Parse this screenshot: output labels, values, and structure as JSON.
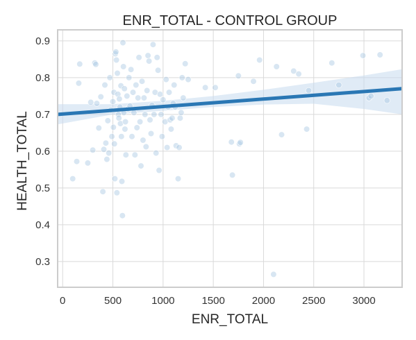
{
  "chart_data": {
    "type": "scatter",
    "title": "ENR_TOTAL - CONTROL GROUP",
    "xlabel": "ENR_TOTAL",
    "ylabel": "HEALTH_TOTAL",
    "xlim": [
      -50,
      3380
    ],
    "ylim": [
      0.23,
      0.93
    ],
    "xticks": [
      "0",
      "500",
      "1000",
      "1500",
      "2000",
      "2500",
      "3000"
    ],
    "yticks": [
      "0.3",
      "0.4",
      "0.5",
      "0.6",
      "0.7",
      "0.8",
      "0.9"
    ],
    "grid": true,
    "colors": {
      "point": "#a9c8e3",
      "line": "#2a77b4",
      "band": "#c6dbef",
      "frame": "#cccccc",
      "grid": "#d9d9d9"
    },
    "regression": {
      "x": [
        -50,
        3380
      ],
      "y": [
        0.7,
        0.77
      ]
    },
    "confidence_band": {
      "x": [
        -50,
        500,
        1000,
        1500,
        2000,
        2500,
        3000,
        3380
      ],
      "upper": [
        0.728,
        0.728,
        0.737,
        0.75,
        0.767,
        0.786,
        0.806,
        0.823
      ],
      "lower": [
        0.673,
        0.7,
        0.71,
        0.72,
        0.727,
        0.729,
        0.715,
        0.7
      ]
    },
    "points": [
      [
        100,
        0.525
      ],
      [
        140,
        0.572
      ],
      [
        160,
        0.785
      ],
      [
        170,
        0.837
      ],
      [
        250,
        0.568
      ],
      [
        280,
        0.733
      ],
      [
        300,
        0.603
      ],
      [
        320,
        0.84
      ],
      [
        330,
        0.836
      ],
      [
        340,
        0.73
      ],
      [
        360,
        0.663
      ],
      [
        380,
        0.748
      ],
      [
        400,
        0.49
      ],
      [
        410,
        0.605
      ],
      [
        420,
        0.78
      ],
      [
        430,
        0.622
      ],
      [
        440,
        0.578
      ],
      [
        450,
        0.683
      ],
      [
        460,
        0.595
      ],
      [
        470,
        0.8
      ],
      [
        480,
        0.712
      ],
      [
        490,
        0.64
      ],
      [
        500,
        0.735
      ],
      [
        505,
        0.665
      ],
      [
        510,
        0.76
      ],
      [
        515,
        0.62
      ],
      [
        520,
        0.525
      ],
      [
        525,
        0.865
      ],
      [
        530,
        0.87
      ],
      [
        535,
        0.848
      ],
      [
        540,
        0.487
      ],
      [
        545,
        0.812
      ],
      [
        550,
        0.755
      ],
      [
        555,
        0.7
      ],
      [
        560,
        0.69
      ],
      [
        565,
        0.742
      ],
      [
        570,
        0.72
      ],
      [
        575,
        0.675
      ],
      [
        580,
        0.778
      ],
      [
        585,
        0.64
      ],
      [
        590,
        0.518
      ],
      [
        595,
        0.425
      ],
      [
        600,
        0.895
      ],
      [
        605,
        0.83
      ],
      [
        610,
        0.705
      ],
      [
        615,
        0.77
      ],
      [
        620,
        0.66
      ],
      [
        625,
        0.68
      ],
      [
        630,
        0.59
      ],
      [
        640,
        0.75
      ],
      [
        650,
        0.715
      ],
      [
        660,
        0.8
      ],
      [
        670,
        0.723
      ],
      [
        680,
        0.822
      ],
      [
        690,
        0.64
      ],
      [
        700,
        0.76
      ],
      [
        710,
        0.705
      ],
      [
        720,
        0.59
      ],
      [
        730,
        0.78
      ],
      [
        740,
        0.664
      ],
      [
        750,
        0.745
      ],
      [
        760,
        0.855
      ],
      [
        770,
        0.68
      ],
      [
        780,
        0.56
      ],
      [
        790,
        0.79
      ],
      [
        800,
        0.63
      ],
      [
        810,
        0.745
      ],
      [
        820,
        0.7
      ],
      [
        830,
        0.612
      ],
      [
        840,
        0.765
      ],
      [
        850,
        0.86
      ],
      [
        860,
        0.845
      ],
      [
        870,
        0.685
      ],
      [
        880,
        0.648
      ],
      [
        890,
        0.725
      ],
      [
        900,
        0.89
      ],
      [
        910,
        0.7
      ],
      [
        920,
        0.76
      ],
      [
        930,
        0.595
      ],
      [
        940,
        0.855
      ],
      [
        950,
        0.82
      ],
      [
        960,
        0.548
      ],
      [
        970,
        0.755
      ],
      [
        980,
        0.7
      ],
      [
        990,
        0.64
      ],
      [
        1000,
        0.74
      ],
      [
        1020,
        0.68
      ],
      [
        1030,
        0.795
      ],
      [
        1040,
        0.61
      ],
      [
        1050,
        0.72
      ],
      [
        1060,
        0.76
      ],
      [
        1070,
        0.685
      ],
      [
        1080,
        0.66
      ],
      [
        1090,
        0.69
      ],
      [
        1100,
        0.73
      ],
      [
        1110,
        0.78
      ],
      [
        1120,
        0.72
      ],
      [
        1130,
        0.615
      ],
      [
        1150,
        0.525
      ],
      [
        1160,
        0.61
      ],
      [
        1170,
        0.69
      ],
      [
        1180,
        0.705
      ],
      [
        1190,
        0.8
      ],
      [
        1200,
        0.745
      ],
      [
        1220,
        0.838
      ],
      [
        1250,
        0.795
      ],
      [
        1420,
        0.773
      ],
      [
        1520,
        0.773
      ],
      [
        1680,
        0.625
      ],
      [
        1690,
        0.535
      ],
      [
        1750,
        0.805
      ],
      [
        1760,
        0.62
      ],
      [
        1770,
        0.624
      ],
      [
        1900,
        0.79
      ],
      [
        1960,
        0.848
      ],
      [
        2100,
        0.265
      ],
      [
        2130,
        0.83
      ],
      [
        2180,
        0.645
      ],
      [
        2300,
        0.818
      ],
      [
        2350,
        0.81
      ],
      [
        2430,
        0.66
      ],
      [
        2450,
        0.765
      ],
      [
        2680,
        0.84
      ],
      [
        2750,
        0.78
      ],
      [
        2990,
        0.86
      ],
      [
        3050,
        0.745
      ],
      [
        3070,
        0.75
      ],
      [
        3160,
        0.862
      ],
      [
        3230,
        0.738
      ]
    ]
  }
}
